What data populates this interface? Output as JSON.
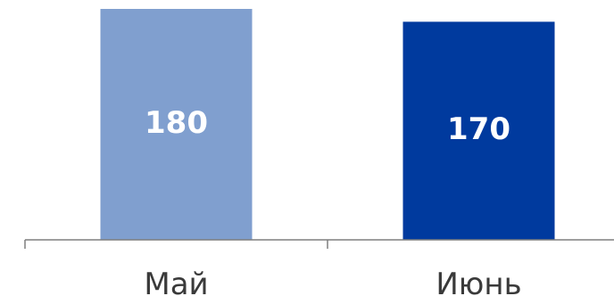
{
  "chart_data": {
    "type": "bar",
    "categories": [
      "Май",
      "Июнь"
    ],
    "values": [
      180,
      170
    ],
    "data_labels": [
      "180",
      "170"
    ],
    "bar_colors": [
      "#809fcf",
      "#003a9e"
    ],
    "data_label_color": "#ffffff",
    "axis_color": "#7f7f7f",
    "label_color": "#3a3a3a",
    "title": "",
    "xlabel": "",
    "ylabel": "",
    "grid": false,
    "legend": "none"
  }
}
